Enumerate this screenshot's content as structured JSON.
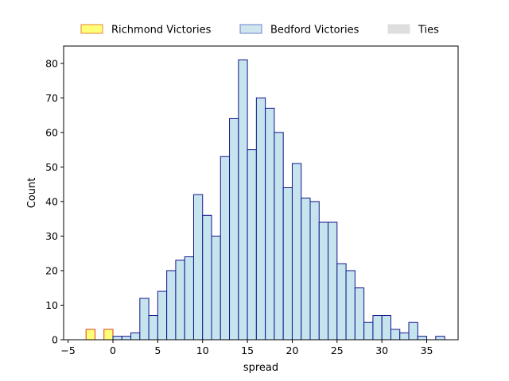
{
  "chart_data": {
    "type": "bar",
    "xlabel": "spread",
    "ylabel": "Count",
    "xlim": [
      -5.5,
      38.5
    ],
    "ylim": [
      0,
      85
    ],
    "xticks": [
      -5,
      0,
      5,
      10,
      15,
      20,
      25,
      30,
      35
    ],
    "yticks": [
      0,
      10,
      20,
      30,
      40,
      50,
      60,
      70,
      80
    ],
    "grid": false,
    "legend_placement": "top-center, above plot",
    "bin_width": 1,
    "series": [
      {
        "name": "Richmond Victories",
        "fill": "#ffff77",
        "edge": "#e23d1f",
        "legend_edge": "#e8843a",
        "bins": [
          {
            "x": -3,
            "count": 3
          },
          {
            "x": -1,
            "count": 3
          }
        ]
      },
      {
        "name": "Bedford Victories",
        "fill": "#c5e4ee",
        "edge": "#14148c",
        "legend_fill": "#cfe6ef",
        "legend_edge": "#6b80c8",
        "bins": [
          {
            "x": 0,
            "count": 1
          },
          {
            "x": 1,
            "count": 1
          },
          {
            "x": 2,
            "count": 2
          },
          {
            "x": 3,
            "count": 12
          },
          {
            "x": 4,
            "count": 7
          },
          {
            "x": 5,
            "count": 14
          },
          {
            "x": 6,
            "count": 20
          },
          {
            "x": 7,
            "count": 23
          },
          {
            "x": 8,
            "count": 24
          },
          {
            "x": 9,
            "count": 42
          },
          {
            "x": 10,
            "count": 36
          },
          {
            "x": 11,
            "count": 30
          },
          {
            "x": 12,
            "count": 53
          },
          {
            "x": 13,
            "count": 64
          },
          {
            "x": 14,
            "count": 81
          },
          {
            "x": 15,
            "count": 55
          },
          {
            "x": 16,
            "count": 70
          },
          {
            "x": 17,
            "count": 67
          },
          {
            "x": 18,
            "count": 60
          },
          {
            "x": 19,
            "count": 44
          },
          {
            "x": 20,
            "count": 51
          },
          {
            "x": 21,
            "count": 41
          },
          {
            "x": 22,
            "count": 40
          },
          {
            "x": 23,
            "count": 34
          },
          {
            "x": 24,
            "count": 34
          },
          {
            "x": 25,
            "count": 22
          },
          {
            "x": 26,
            "count": 20
          },
          {
            "x": 27,
            "count": 15
          },
          {
            "x": 28,
            "count": 5
          },
          {
            "x": 29,
            "count": 7
          },
          {
            "x": 30,
            "count": 7
          },
          {
            "x": 31,
            "count": 3
          },
          {
            "x": 32,
            "count": 2
          },
          {
            "x": 33,
            "count": 5
          },
          {
            "x": 34,
            "count": 1
          },
          {
            "x": 35,
            "count": 0
          },
          {
            "x": 36,
            "count": 1
          }
        ]
      },
      {
        "name": "Ties",
        "fill": "#dedede",
        "edge": "#dedede",
        "bins": []
      }
    ]
  }
}
